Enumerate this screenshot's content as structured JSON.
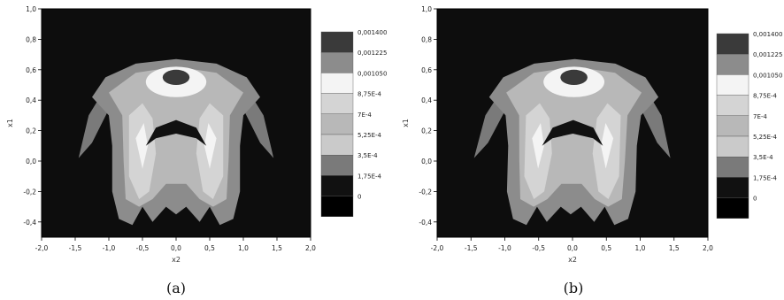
{
  "chart_data": [
    {
      "type": "heatmap",
      "panel_label": "(a)",
      "xlabel": "x2",
      "ylabel": "x1",
      "xlim": [
        -2.0,
        2.0
      ],
      "ylim": [
        -0.5,
        1.0
      ],
      "xticks": [
        "-2,0",
        "-1,5",
        "-1,0",
        "-0,5",
        "0,0",
        "0,5",
        "1,0",
        "1,5",
        "2,0"
      ],
      "yticks": [
        "-0,4",
        "-0,2",
        "0,0",
        "0,2",
        "0,4",
        "0,6",
        "0,8",
        "1,0"
      ],
      "legend": {
        "placement": "right",
        "levels": [
          "0,001400",
          "0,001225",
          "0,001050",
          "8,75E-4",
          "7E-4",
          "5,25E-4",
          "3,5E-4",
          "1,75E-4",
          "0"
        ],
        "colors": [
          "#3a3a3a",
          "#8c8c8c",
          "#f4f4f4",
          "#d4d4d4",
          "#b8b8b8",
          "#cacaca",
          "#7a7a7a",
          "#111111",
          "#000000"
        ]
      },
      "background_color": "#0d0d0d"
    },
    {
      "type": "heatmap",
      "panel_label": "(b)",
      "xlabel": "x2",
      "ylabel": "x1",
      "xlim": [
        -2.0,
        2.0
      ],
      "ylim": [
        -0.5,
        1.0
      ],
      "xticks": [
        "-2,0",
        "-1,5",
        "-1,0",
        "-0,5",
        "0,0",
        "0,5",
        "1,0",
        "1,5",
        "2,0"
      ],
      "yticks": [
        "-0,4",
        "-0,2",
        "0,0",
        "0,2",
        "0,4",
        "0,6",
        "0,8",
        "1,0"
      ],
      "legend": {
        "placement": "right",
        "levels": [
          "0,001400",
          "0,001225",
          "0,001050",
          "8,75E-4",
          "7E-4",
          "5,25E-4",
          "3,5E-4",
          "1,75E-4",
          "0"
        ],
        "colors": [
          "#3a3a3a",
          "#8c8c8c",
          "#f4f4f4",
          "#d4d4d4",
          "#b8b8b8",
          "#cacaca",
          "#7a7a7a",
          "#111111",
          "#000000"
        ]
      },
      "background_color": "#0d0d0d"
    }
  ]
}
